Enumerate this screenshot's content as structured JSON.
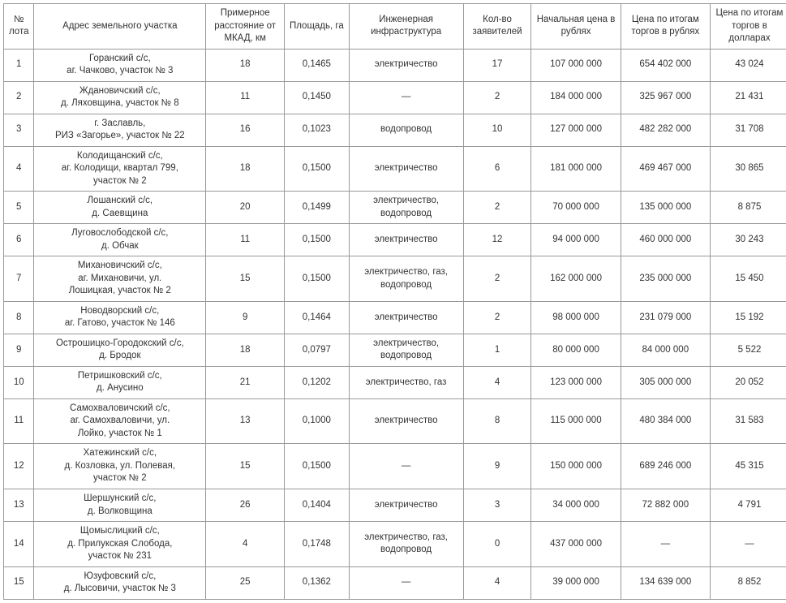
{
  "table": {
    "headers": {
      "lot": "№ лота",
      "address": "Адрес земельного участка",
      "distance": "Примерное расстояние от МКАД, км",
      "area": "Площадь, га",
      "infra": "Инженерная инфраструктура",
      "applicants": "Кол-во заявителей",
      "start_price": "Начальная цена в рублях",
      "final_rub": "Цена по итогам торгов в рублях",
      "final_usd": "Цена по итогам торгов в долларах"
    },
    "rows": [
      {
        "lot": "1",
        "address": [
          "Горанский с/с,",
          "аг. Чачково, участок № 3"
        ],
        "distance": "18",
        "area": "0,1465",
        "infra": "электричество",
        "applicants": "17",
        "start_price": "107 000 000",
        "final_rub": "654 402 000",
        "final_usd": "43 024"
      },
      {
        "lot": "2",
        "address": [
          "Ждановичский с/с,",
          "д. Ляховщина, участок № 8"
        ],
        "distance": "11",
        "area": "0,1450",
        "infra": "—",
        "applicants": "2",
        "start_price": "184 000 000",
        "final_rub": "325 967 000",
        "final_usd": "21 431"
      },
      {
        "lot": "3",
        "address": [
          "г. Заславль,",
          "РИЗ «Загорье», участок № 22"
        ],
        "distance": "16",
        "area": "0,1023",
        "infra": "водопровод",
        "applicants": "10",
        "start_price": "127 000 000",
        "final_rub": "482 282 000",
        "final_usd": "31 708"
      },
      {
        "lot": "4",
        "address": [
          "Колодищанский с/с,",
          "аг. Колодищи, квартал 799,",
          "участок № 2"
        ],
        "distance": "18",
        "area": "0,1500",
        "infra": "электричество",
        "applicants": "6",
        "start_price": "181 000 000",
        "final_rub": "469 467 000",
        "final_usd": "30 865"
      },
      {
        "lot": "5",
        "address": [
          "Лошанский с/с,",
          "д. Саевщина"
        ],
        "distance": "20",
        "area": "0,1499",
        "infra": "электричество, водопровод",
        "applicants": "2",
        "start_price": "70 000 000",
        "final_rub": "135 000 000",
        "final_usd": "8 875"
      },
      {
        "lot": "6",
        "address": [
          "Луговослободской с/с,",
          "д. Обчак"
        ],
        "distance": "11",
        "area": "0,1500",
        "infra": "электричество",
        "applicants": "12",
        "start_price": "94 000 000",
        "final_rub": "460 000 000",
        "final_usd": "30 243"
      },
      {
        "lot": "7",
        "address": [
          "Михановичский с/с,",
          "аг. Михановичи, ул.",
          "Лошицкая, участок № 2"
        ],
        "distance": "15",
        "area": "0,1500",
        "infra": "электричество, газ, водопровод",
        "applicants": "2",
        "start_price": "162 000 000",
        "final_rub": "235 000 000",
        "final_usd": "15 450"
      },
      {
        "lot": "8",
        "address": [
          "Новодворский с/с,",
          "аг. Гатово, участок № 146"
        ],
        "distance": "9",
        "area": "0,1464",
        "infra": "электричество",
        "applicants": "2",
        "start_price": "98 000 000",
        "final_rub": "231 079 000",
        "final_usd": "15 192"
      },
      {
        "lot": "9",
        "address": [
          "Острошицко-Городокский с/с,",
          "д. Бродок"
        ],
        "distance": "18",
        "area": "0,0797",
        "infra": "электричество, водопровод",
        "applicants": "1",
        "start_price": "80 000 000",
        "final_rub": "84 000 000",
        "final_usd": "5 522"
      },
      {
        "lot": "10",
        "address": [
          "Петришковский с/с,",
          "д. Анусино"
        ],
        "distance": "21",
        "area": "0,1202",
        "infra": "электричество, газ",
        "applicants": "4",
        "start_price": "123 000 000",
        "final_rub": "305 000 000",
        "final_usd": "20 052"
      },
      {
        "lot": "11",
        "address": [
          "Самохваловичский с/с,",
          "аг. Самохваловичи, ул.",
          "Лойко, участок № 1"
        ],
        "distance": "13",
        "area": "0,1000",
        "infra": "электричество",
        "applicants": "8",
        "start_price": "115 000 000",
        "final_rub": "480 384 000",
        "final_usd": "31 583"
      },
      {
        "lot": "12",
        "address": [
          "Хатежинский с/с,",
          "д. Козловка, ул. Полевая,",
          "участок № 2"
        ],
        "distance": "15",
        "area": "0,1500",
        "infra": "—",
        "applicants": "9",
        "start_price": "150 000 000",
        "final_rub": "689 246 000",
        "final_usd": "45 315"
      },
      {
        "lot": "13",
        "address": [
          "Шершунский с/с,",
          "д. Волковщина"
        ],
        "distance": "26",
        "area": "0,1404",
        "infra": "электричество",
        "applicants": "3",
        "start_price": "34 000 000",
        "final_rub": "72 882 000",
        "final_usd": "4 791"
      },
      {
        "lot": "14",
        "address": [
          "Щомыслицкий с/с,",
          "д. Прилукская Слобода,",
          "участок № 231"
        ],
        "distance": "4",
        "area": "0,1748",
        "infra": "электричество, газ, водопровод",
        "applicants": "0",
        "start_price": "437 000 000",
        "final_rub": "—",
        "final_usd": "—"
      },
      {
        "lot": "15",
        "address": [
          "Юзуфовский с/с,",
          "д. Лысовичи, участок № 3"
        ],
        "distance": "25",
        "area": "0,1362",
        "infra": "—",
        "applicants": "4",
        "start_price": "39 000 000",
        "final_rub": "134 639 000",
        "final_usd": "8 852"
      }
    ]
  }
}
